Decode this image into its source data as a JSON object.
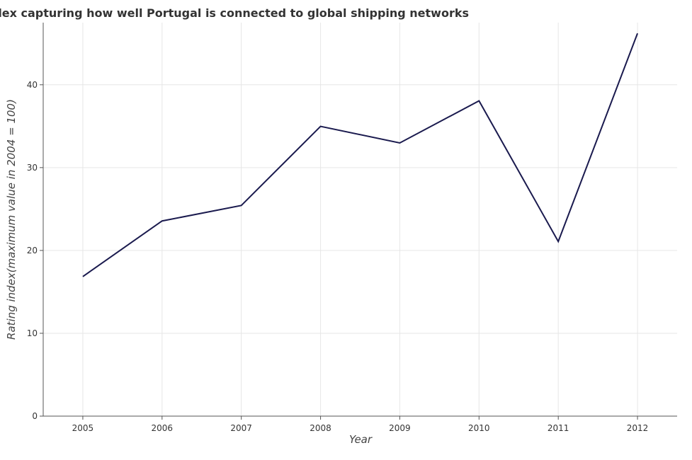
{
  "chart_data": {
    "type": "line",
    "title": "Index capturing how well Portugal is connected to global shipping networks",
    "xlabel": "Year",
    "ylabel": "Rating index(maximum value in 2004 = 100)",
    "categories": [
      "2005",
      "2006",
      "2007",
      "2008",
      "2009",
      "2010",
      "2011",
      "2012"
    ],
    "series": [
      {
        "values": [
          16.85,
          23.56,
          25.43,
          34.98,
          32.98,
          38.06,
          21.08,
          46.21
        ]
      }
    ],
    "yticks": [
      "0",
      "10",
      "20",
      "30",
      "40"
    ],
    "ylim": [
      0,
      47.5
    ],
    "grid": true,
    "line_color": "#1a1a4e"
  }
}
